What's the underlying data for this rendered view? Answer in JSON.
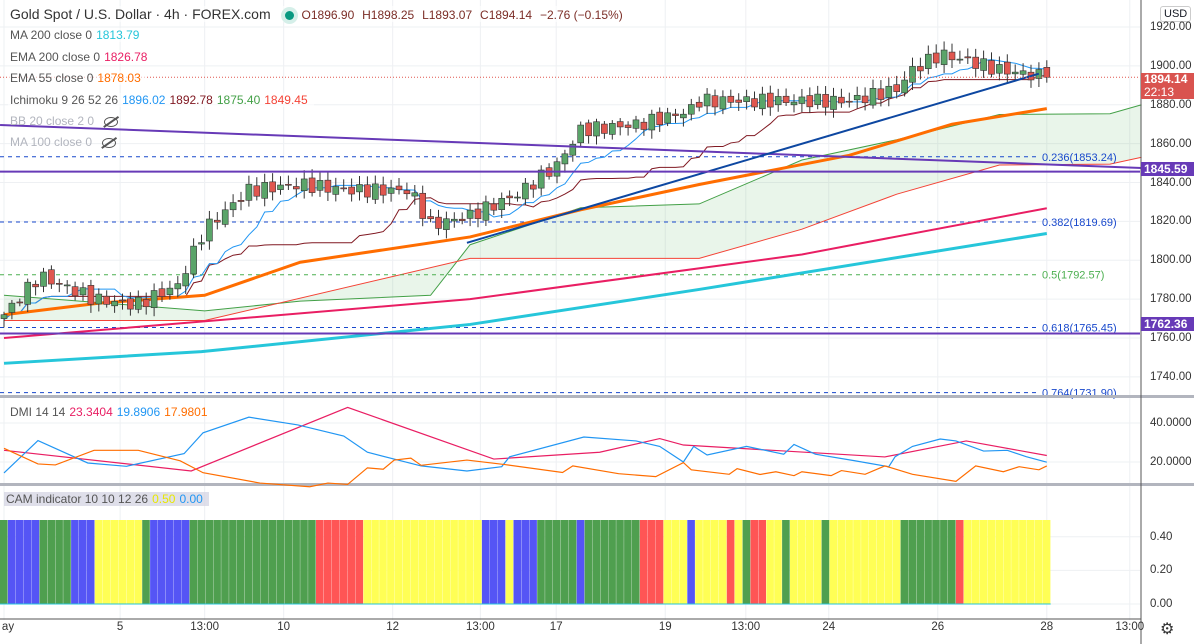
{
  "header": {
    "symbol": "Gold Spot / U.S. Dollar · 4h · FOREX.com",
    "open": "O1896.90",
    "high": "H1898.25",
    "low": "L1893.07",
    "close": "C1894.14",
    "change": "−2.76 (−0.15%)"
  },
  "legend": [
    {
      "name": "MA 200 close 0",
      "value": "1813.79",
      "color": "#26c6da"
    },
    {
      "name": "EMA 200 close 0",
      "value": "1826.78",
      "color": "#e91e63"
    },
    {
      "name": "EMA 55 close 0",
      "value": "1878.03",
      "color": "#ff6d00"
    },
    {
      "name": "Ichimoku 9 26 52 26",
      "values": [
        "1896.02",
        "1892.78",
        "1875.40",
        "1849.45"
      ],
      "colors": [
        "#2196f3",
        "#801922",
        "#43a047",
        "#f44336"
      ]
    },
    {
      "name": "BB 20 close 2 0",
      "hidden": true
    },
    {
      "name": "MA 100 close 0",
      "hidden": true
    }
  ],
  "dmi": {
    "name": "DMI 14 14",
    "values": [
      "23.3404",
      "19.8906",
      "17.9801"
    ]
  },
  "cam": {
    "name": "CAM indicator 10 10 12 26",
    "values": [
      "0.50",
      "0.00"
    ]
  },
  "axis": {
    "currency": "USD",
    "price_ticks": [
      "1920.00",
      "1900.00",
      "1880.00",
      "1860.00",
      "1840.00",
      "1820.00",
      "1800.00",
      "1780.00",
      "1760.00",
      "1740.00"
    ],
    "dmi_ticks": [
      "40.0000",
      "20.0000"
    ],
    "cam_ticks": [
      "0.40",
      "0.20",
      "0.00"
    ]
  },
  "tags": {
    "last_price": "1894.14",
    "countdown": "22:13",
    "level1": "1845.59",
    "level2": "1762.36"
  },
  "fib": [
    {
      "label": "0.236(1853.24)",
      "price": 1853.24,
      "color": "#1848cc"
    },
    {
      "label": "0.382(1819.69)",
      "price": 1819.69,
      "color": "#1848cc"
    },
    {
      "label": "0.5(1792.57)",
      "price": 1792.57,
      "color": "#4caf50"
    },
    {
      "label": "0.618(1765.45)",
      "price": 1765.45,
      "color": "#1848cc"
    },
    {
      "label": "0.764(1731.90)",
      "price": 1731.9,
      "color": "#1848cc"
    }
  ],
  "time_labels": [
    {
      "t": "ay",
      "bar": 0
    },
    {
      "t": "5",
      "bar": 14.7
    },
    {
      "t": "13:00",
      "bar": 25.4
    },
    {
      "t": "10",
      "bar": 35.4
    },
    {
      "t": "12",
      "bar": 49.2
    },
    {
      "t": "13:00",
      "bar": 60.3
    },
    {
      "t": "17",
      "bar": 69.9
    },
    {
      "t": "19",
      "bar": 83.7
    },
    {
      "t": "13:00",
      "bar": 93.9
    },
    {
      "t": "24",
      "bar": 104.4
    },
    {
      "t": "26",
      "bar": 118.2
    },
    {
      "t": "28",
      "bar": 132
    },
    {
      "t": "13:00",
      "bar": 142.5
    }
  ],
  "chart_data": {
    "type": "candlestick",
    "bars": 133,
    "price_range": [
      1730.7,
      1933.9
    ],
    "close_anchors": [
      [
        0,
        1772
      ],
      [
        4.5,
        1792
      ],
      [
        11.5,
        1780
      ],
      [
        16.6,
        1777
      ],
      [
        22,
        1787
      ],
      [
        25.4,
        1816
      ],
      [
        31,
        1836
      ],
      [
        37.5,
        1839
      ],
      [
        44,
        1836
      ],
      [
        51.4,
        1836
      ],
      [
        54,
        1818
      ],
      [
        59,
        1823
      ],
      [
        65,
        1834
      ],
      [
        70,
        1849
      ],
      [
        73,
        1867
      ],
      [
        80.5,
        1870
      ],
      [
        86.8,
        1877
      ],
      [
        88,
        1882
      ],
      [
        107,
        1882
      ],
      [
        113,
        1888
      ],
      [
        115,
        1898
      ],
      [
        118.5,
        1906
      ],
      [
        121.6,
        1903
      ],
      [
        126,
        1898
      ],
      [
        132,
        1894.14
      ]
    ],
    "ma200": [
      [
        0,
        1747
      ],
      [
        25,
        1753
      ],
      [
        59,
        1767
      ],
      [
        88,
        1785
      ],
      [
        132,
        1813.79
      ]
    ],
    "ema200": [
      [
        0,
        1760
      ],
      [
        59,
        1780
      ],
      [
        101,
        1803
      ],
      [
        132,
        1826.78
      ]
    ],
    "ema55": [
      [
        0,
        1772
      ],
      [
        12.2,
        1778
      ],
      [
        25.4,
        1782
      ],
      [
        37.5,
        1799
      ],
      [
        59,
        1812
      ],
      [
        73,
        1826
      ],
      [
        88,
        1839
      ],
      [
        107,
        1854
      ],
      [
        120,
        1870
      ],
      [
        132,
        1878.03
      ]
    ],
    "span_a": [
      [
        0,
        1782
      ],
      [
        25.4,
        1774
      ],
      [
        37.5,
        1779
      ],
      [
        54,
        1782
      ],
      [
        59,
        1808
      ],
      [
        73,
        1827
      ],
      [
        88,
        1829
      ],
      [
        101,
        1851.6
      ],
      [
        113,
        1862
      ],
      [
        126,
        1875
      ],
      [
        140,
        1875.4
      ],
      [
        144,
        1880
      ]
    ],
    "span_b": [
      [
        0,
        1769
      ],
      [
        25.4,
        1769
      ],
      [
        59,
        1801
      ],
      [
        88,
        1801
      ],
      [
        101,
        1816
      ],
      [
        113,
        1834
      ],
      [
        126,
        1849
      ],
      [
        140,
        1849.45
      ],
      [
        144,
        1853
      ]
    ],
    "trendlines": [
      {
        "color": "#673ab7",
        "from": [
          -0.5,
          1869.6
        ],
        "to": [
          144,
          1847.5
        ]
      },
      {
        "color": "#0d47a1",
        "from": [
          58.6,
          1809
        ],
        "to": [
          131,
          1896
        ]
      }
    ],
    "horizontal_levels": [
      {
        "price": 1845.59,
        "color": "#673ab7"
      },
      {
        "price": 1762.36,
        "color": "#673ab7"
      }
    ],
    "dmi_range": [
      0,
      52
    ],
    "dmi_series": [
      {
        "name": "ADX",
        "color": "#e91e63",
        "points": [
          [
            0,
            26
          ],
          [
            23.7,
            15.4
          ],
          [
            43.5,
            48
          ],
          [
            62,
            21.5
          ],
          [
            75.4,
            25
          ],
          [
            83,
            32
          ],
          [
            86,
            28.7
          ],
          [
            111.5,
            22.6
          ],
          [
            121.8,
            30.8
          ],
          [
            132,
            23.34
          ]
        ]
      },
      {
        "name": "+DI",
        "color": "#2196f3",
        "points": [
          [
            0,
            14.4
          ],
          [
            4.3,
            31
          ],
          [
            10.6,
            19.5
          ],
          [
            15.5,
            17.8
          ],
          [
            22.8,
            24.3
          ],
          [
            25.2,
            35
          ],
          [
            31,
            43
          ],
          [
            37.2,
            39
          ],
          [
            43,
            33.3
          ],
          [
            46,
            25
          ],
          [
            52.8,
            18
          ],
          [
            58.6,
            15.4
          ],
          [
            63,
            17.6
          ],
          [
            64,
            22.7
          ],
          [
            73.4,
            32.8
          ],
          [
            80,
            30.8
          ],
          [
            83,
            28
          ],
          [
            86,
            20
          ],
          [
            87.3,
            28
          ],
          [
            89,
            23.6
          ],
          [
            94,
            28
          ],
          [
            98.7,
            24
          ],
          [
            100,
            29
          ],
          [
            102.7,
            24
          ],
          [
            107.6,
            20.7
          ],
          [
            112,
            17.6
          ],
          [
            112.8,
            22.7
          ],
          [
            115,
            28
          ],
          [
            118.5,
            31.8
          ],
          [
            120.5,
            30.8
          ],
          [
            124,
            25.6
          ],
          [
            127,
            26
          ],
          [
            129.4,
            22.7
          ],
          [
            132,
            19.89
          ]
        ]
      },
      {
        "name": "-DI",
        "color": "#ff6d00",
        "points": [
          [
            0,
            27
          ],
          [
            4.3,
            19
          ],
          [
            6.5,
            18.5
          ],
          [
            11.4,
            26
          ],
          [
            17,
            26
          ],
          [
            22.3,
            20.6
          ],
          [
            25.2,
            14.5
          ],
          [
            32.4,
            9.2
          ],
          [
            38.7,
            7.3
          ],
          [
            41,
            9.2
          ],
          [
            43.5,
            8.5
          ],
          [
            46,
            17
          ],
          [
            48,
            16.3
          ],
          [
            49.4,
            21
          ],
          [
            51.5,
            22
          ],
          [
            52.8,
            18.3
          ],
          [
            58.6,
            21
          ],
          [
            63.4,
            18.7
          ],
          [
            70.7,
            14.6
          ],
          [
            72,
            18
          ],
          [
            77.8,
            14
          ],
          [
            82.5,
            12.5
          ],
          [
            86,
            19.7
          ],
          [
            87,
            16
          ],
          [
            91.8,
            13.7
          ],
          [
            92.8,
            16.6
          ],
          [
            95.7,
            13.6
          ],
          [
            97.7,
            15
          ],
          [
            100,
            13
          ],
          [
            101,
            15
          ],
          [
            104.7,
            13
          ],
          [
            106,
            15.6
          ],
          [
            109,
            13.7
          ],
          [
            111.5,
            18
          ],
          [
            115,
            13.7
          ],
          [
            120.5,
            10.1
          ],
          [
            123,
            18
          ],
          [
            126.5,
            15
          ],
          [
            128.5,
            17.6
          ],
          [
            131,
            16
          ],
          [
            132,
            17.98
          ]
        ]
      }
    ],
    "cam_colors": {
      "g": "#4f9f4f",
      "b": "#5555f5",
      "y": "#ffff55",
      "r": "#ff5555"
    },
    "cam_segments": [
      [
        "g",
        1
      ],
      [
        "b",
        4
      ],
      [
        "g",
        4
      ],
      [
        "b",
        3
      ],
      [
        "y",
        6
      ],
      [
        "g",
        1
      ],
      [
        "b",
        5
      ],
      [
        "g",
        16
      ],
      [
        "r",
        6
      ],
      [
        "y",
        15
      ],
      [
        "b",
        3
      ],
      [
        "y",
        1
      ],
      [
        "b",
        3
      ],
      [
        "g",
        5
      ],
      [
        "b",
        1
      ],
      [
        "g",
        7
      ],
      [
        "r",
        3
      ],
      [
        "y",
        3
      ],
      [
        "b",
        1
      ],
      [
        "y",
        4
      ],
      [
        "r",
        1
      ],
      [
        "y",
        1
      ],
      [
        "g",
        1
      ],
      [
        "r",
        2
      ],
      [
        "y",
        2
      ],
      [
        "g",
        1
      ],
      [
        "y",
        4
      ],
      [
        "g",
        1
      ],
      [
        "y",
        9
      ],
      [
        "g",
        7
      ],
      [
        "r",
        1
      ],
      [
        "y",
        11
      ]
    ],
    "cam_value": 0.5
  }
}
